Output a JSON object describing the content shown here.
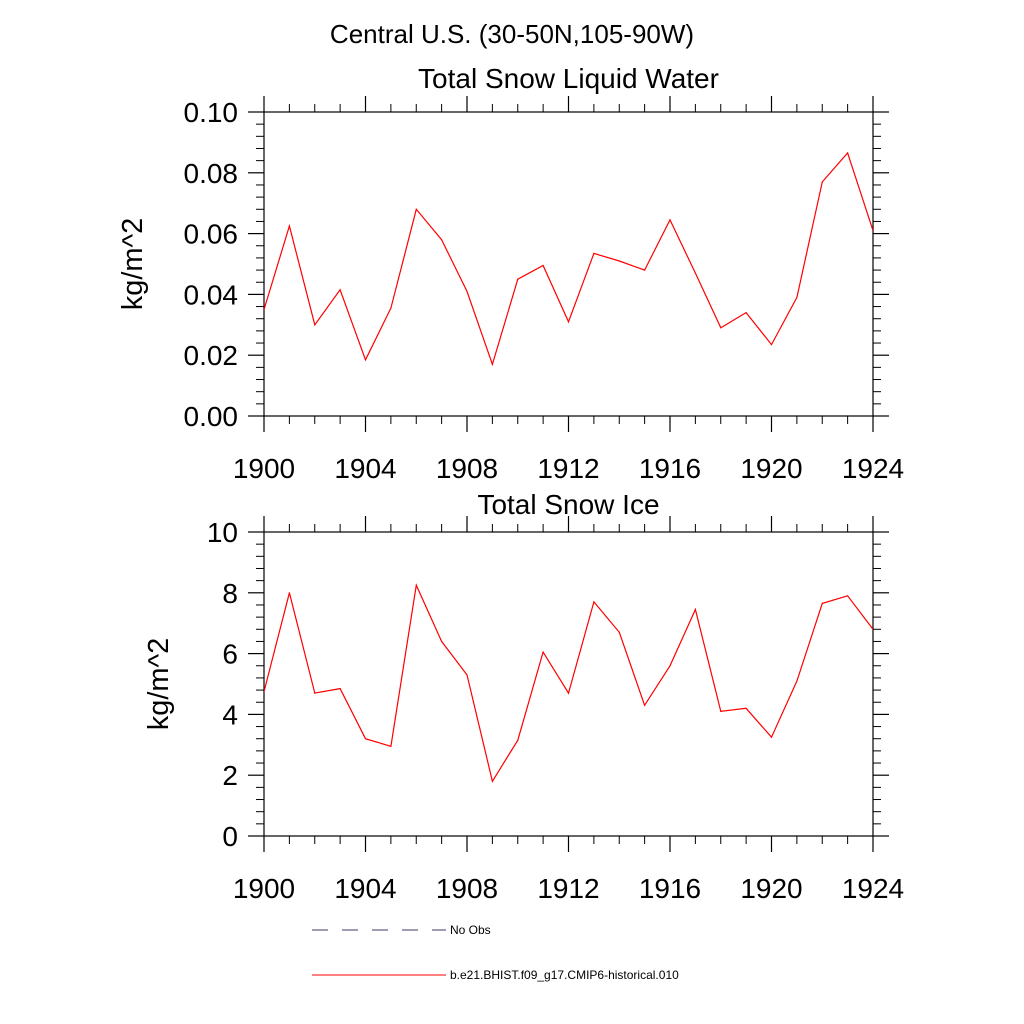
{
  "figure": {
    "main_title": "Central U.S. (30-50N,105-90W)"
  },
  "legend": [
    {
      "label": "No Obs",
      "style": "dashed",
      "color": "#3a3a6a"
    },
    {
      "label": "b.e21.BHIST.f09_g17.CMIP6-historical.010",
      "style": "solid",
      "color": "#ff0000"
    }
  ],
  "chart_data": [
    {
      "type": "line",
      "title": "Total Snow Liquid Water",
      "xlabel": "",
      "ylabel": "kg/m^2",
      "xlim": [
        1900,
        1924
      ],
      "ylim": [
        0,
        0.1
      ],
      "x_ticks": [
        "1900",
        "1904",
        "1908",
        "1912",
        "1916",
        "1920",
        "1924"
      ],
      "y_ticks": [
        "0.00",
        "0.02",
        "0.04",
        "0.06",
        "0.08",
        "0.10"
      ],
      "grid": false,
      "series": [
        {
          "name": "b.e21.BHIST.f09_g17.CMIP6-historical.010",
          "color": "#ff0000",
          "x": [
            1900,
            1901,
            1902,
            1903,
            1904,
            1905,
            1906,
            1907,
            1908,
            1909,
            1910,
            1911,
            1912,
            1913,
            1914,
            1915,
            1916,
            1917,
            1918,
            1919,
            1920,
            1921,
            1922,
            1923,
            1924
          ],
          "y": [
            0.035,
            0.0625,
            0.03,
            0.0415,
            0.0185,
            0.0355,
            0.068,
            0.058,
            0.041,
            0.017,
            0.045,
            0.0495,
            0.031,
            0.0535,
            0.051,
            0.048,
            0.0645,
            0.047,
            0.029,
            0.034,
            0.0235,
            0.039,
            0.077,
            0.0865,
            0.061
          ]
        }
      ]
    },
    {
      "type": "line",
      "title": "Total Snow Ice",
      "xlabel": "",
      "ylabel": "kg/m^2",
      "xlim": [
        1900,
        1924
      ],
      "ylim": [
        0,
        10
      ],
      "x_ticks": [
        "1900",
        "1904",
        "1908",
        "1912",
        "1916",
        "1920",
        "1924"
      ],
      "y_ticks": [
        "0",
        "2",
        "4",
        "6",
        "8",
        "10"
      ],
      "grid": false,
      "series": [
        {
          "name": "b.e21.BHIST.f09_g17.CMIP6-historical.010",
          "color": "#ff0000",
          "x": [
            1900,
            1901,
            1902,
            1903,
            1904,
            1905,
            1906,
            1907,
            1908,
            1909,
            1910,
            1911,
            1912,
            1913,
            1914,
            1915,
            1916,
            1917,
            1918,
            1919,
            1920,
            1921,
            1922,
            1923,
            1924
          ],
          "y": [
            4.75,
            8.0,
            4.7,
            4.85,
            3.2,
            2.95,
            8.25,
            6.4,
            5.3,
            1.8,
            3.15,
            6.05,
            4.7,
            7.7,
            6.7,
            4.3,
            5.6,
            7.45,
            4.1,
            4.2,
            3.25,
            5.1,
            7.65,
            7.9,
            6.8
          ]
        }
      ]
    }
  ]
}
